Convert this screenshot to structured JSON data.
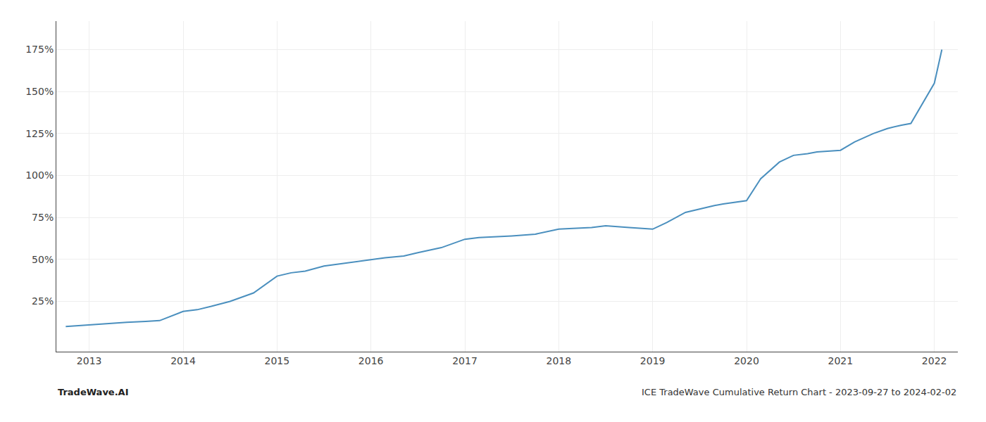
{
  "chart_data": {
    "type": "line",
    "title": "ICE TradeWave Cumulative Return Chart - 2023-09-27 to 2024-02-02",
    "annotations": [
      "TradeWave.AI"
    ],
    "x": [
      2012.75,
      2013.0,
      2013.1,
      2013.2,
      2013.4,
      2013.6,
      2013.75,
      2014.0,
      2014.15,
      2014.3,
      2014.5,
      2014.75,
      2015.0,
      2015.15,
      2015.3,
      2015.5,
      2015.75,
      2016.0,
      2016.15,
      2016.35,
      2016.5,
      2016.75,
      2017.0,
      2017.15,
      2017.35,
      2017.5,
      2017.75,
      2018.0,
      2018.15,
      2018.35,
      2018.5,
      2018.65,
      2018.75,
      2019.0,
      2019.15,
      2019.35,
      2019.5,
      2019.65,
      2019.75,
      2020.0,
      2020.15,
      2020.35,
      2020.5,
      2020.65,
      2020.75,
      2021.0,
      2021.15,
      2021.35,
      2021.5,
      2021.65,
      2021.75,
      2022.0,
      2022.08
    ],
    "values": [
      10,
      11,
      11.5,
      12,
      12.5,
      13,
      13.5,
      19,
      20,
      22,
      25,
      30,
      40,
      42,
      43,
      46,
      48,
      50,
      51,
      52,
      54,
      57,
      62,
      63,
      63.5,
      64,
      65,
      68,
      68.5,
      69,
      70,
      69.5,
      69,
      68,
      72,
      78,
      80,
      82,
      83,
      85,
      98,
      108,
      112,
      113,
      114,
      115,
      120,
      125,
      128,
      130,
      131,
      155,
      175
    ],
    "color": "#4a8fbe",
    "xlim": [
      2012.65,
      2022.25
    ],
    "xticks": [
      2013,
      2014,
      2015,
      2016,
      2017,
      2018,
      2019,
      2020,
      2021,
      2022
    ],
    "ylim": [
      -5,
      192
    ],
    "yticks": [
      {
        "value": 25,
        "label": "25%"
      },
      {
        "value": 50,
        "label": "50%"
      },
      {
        "value": 75,
        "label": "75%"
      },
      {
        "value": 100,
        "label": "100%"
      },
      {
        "value": 125,
        "label": "125%"
      },
      {
        "value": 150,
        "label": "150%"
      },
      {
        "value": 175,
        "label": "175%"
      }
    ],
    "grid": true
  }
}
